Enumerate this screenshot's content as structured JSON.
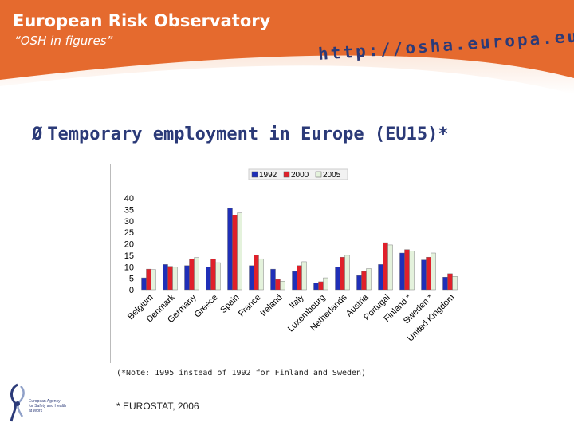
{
  "header": {
    "title": "European Risk Observatory",
    "subtitle": "“OSH in figures”",
    "url": "http://osha.europa.eu",
    "colors": {
      "orange": "#e56a2e",
      "navy": "#2b3a78"
    }
  },
  "slide": {
    "bullet_icon": "arrow-bullet-icon",
    "bullet": "Ø",
    "title": "Temporary employment in Europe (EU15)*",
    "note": "(*Note: 1995 instead of 1992 for Finland and Sweden)",
    "source": "* EUROSTAT, 2006"
  },
  "logo": {
    "icon": "eu-osha-logo-icon",
    "lines": [
      "European Agency",
      "for Safety and Health",
      "at Work"
    ]
  },
  "chart_data": {
    "type": "bar",
    "categories": [
      "Belgium",
      "Denmark",
      "Germany",
      "Greece",
      "Spain",
      "France",
      "Ireland",
      "Italy",
      "Luxembourg",
      "Netherlands",
      "Austria",
      "Portugal",
      "Finland *",
      "Sweden *",
      "United Kingdom"
    ],
    "series": [
      {
        "name": "1992",
        "color": "#1f2fb8",
        "values": [
          5.2,
          11,
          10.5,
          10,
          35.5,
          10.5,
          9,
          8,
          3,
          10,
          6.2,
          11,
          16,
          13,
          5.5
        ]
      },
      {
        "name": "2000",
        "color": "#e0202a",
        "values": [
          9,
          10.2,
          13.5,
          13.5,
          32.5,
          15.2,
          4.5,
          10.5,
          3.5,
          14.2,
          8,
          20.5,
          17.5,
          14.2,
          7
        ]
      },
      {
        "name": "2005",
        "color": "#e4f2dc",
        "values": [
          8.8,
          9.8,
          14,
          11.8,
          33.5,
          13.5,
          3.7,
          12.2,
          5.2,
          15,
          9.2,
          19.5,
          16.8,
          16,
          5.8
        ]
      }
    ],
    "y_ticks": [
      "40",
      "35",
      "30",
      "25",
      "20",
      "15",
      "10",
      "5",
      "0"
    ],
    "ylim": [
      0,
      40
    ],
    "grid": false,
    "legend": "top"
  }
}
